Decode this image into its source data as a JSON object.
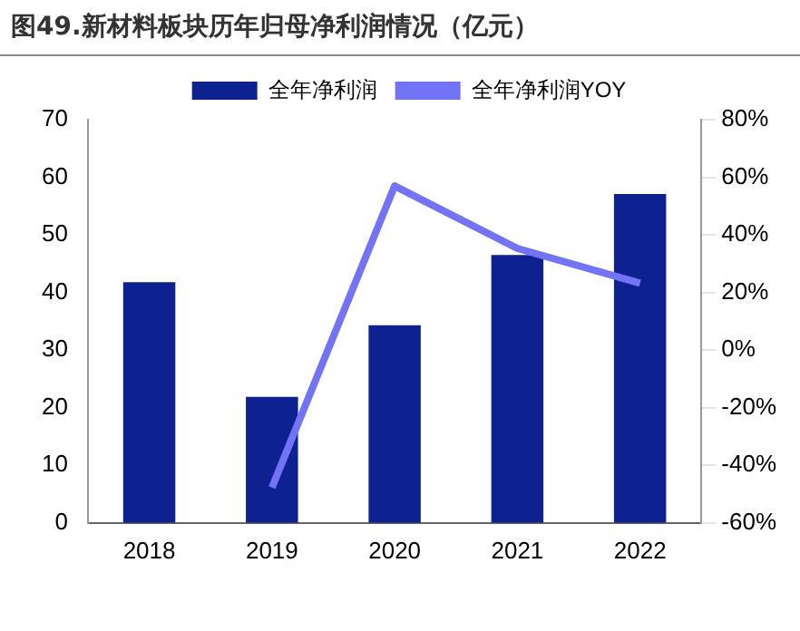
{
  "chart_data": {
    "type": "bar",
    "title": "图49.新材料板块历年归母净利润情况（亿元）",
    "categories": [
      "2018",
      "2019",
      "2020",
      "2021",
      "2022"
    ],
    "series": [
      {
        "name": "全年净利润",
        "color": "#0d2190",
        "values": [
          41.8,
          21.9,
          34.3,
          46.5,
          57.1
        ]
      },
      {
        "name": "全年净利润YOY",
        "type": "line",
        "axis": "y2",
        "color": "#7373f5",
        "values": [
          null,
          -47.7,
          57,
          35.3,
          23.2
        ]
      }
    ],
    "ylim": [
      0,
      70
    ],
    "yticks": [
      0,
      10,
      20,
      30,
      40,
      50,
      60,
      70
    ],
    "y2lim": [
      -60,
      80
    ],
    "y2ticks": [
      {
        "value": -60,
        "label": "-60%"
      },
      {
        "value": -40,
        "label": "-40%"
      },
      {
        "value": -20,
        "label": "-20%"
      },
      {
        "value": 0,
        "label": "0%"
      },
      {
        "value": 20,
        "label": "20%"
      },
      {
        "value": 40,
        "label": "40%"
      },
      {
        "value": 60,
        "label": "60%"
      },
      {
        "value": 80,
        "label": "80%"
      }
    ],
    "grid": false,
    "legend": "top",
    "marker": "none"
  }
}
